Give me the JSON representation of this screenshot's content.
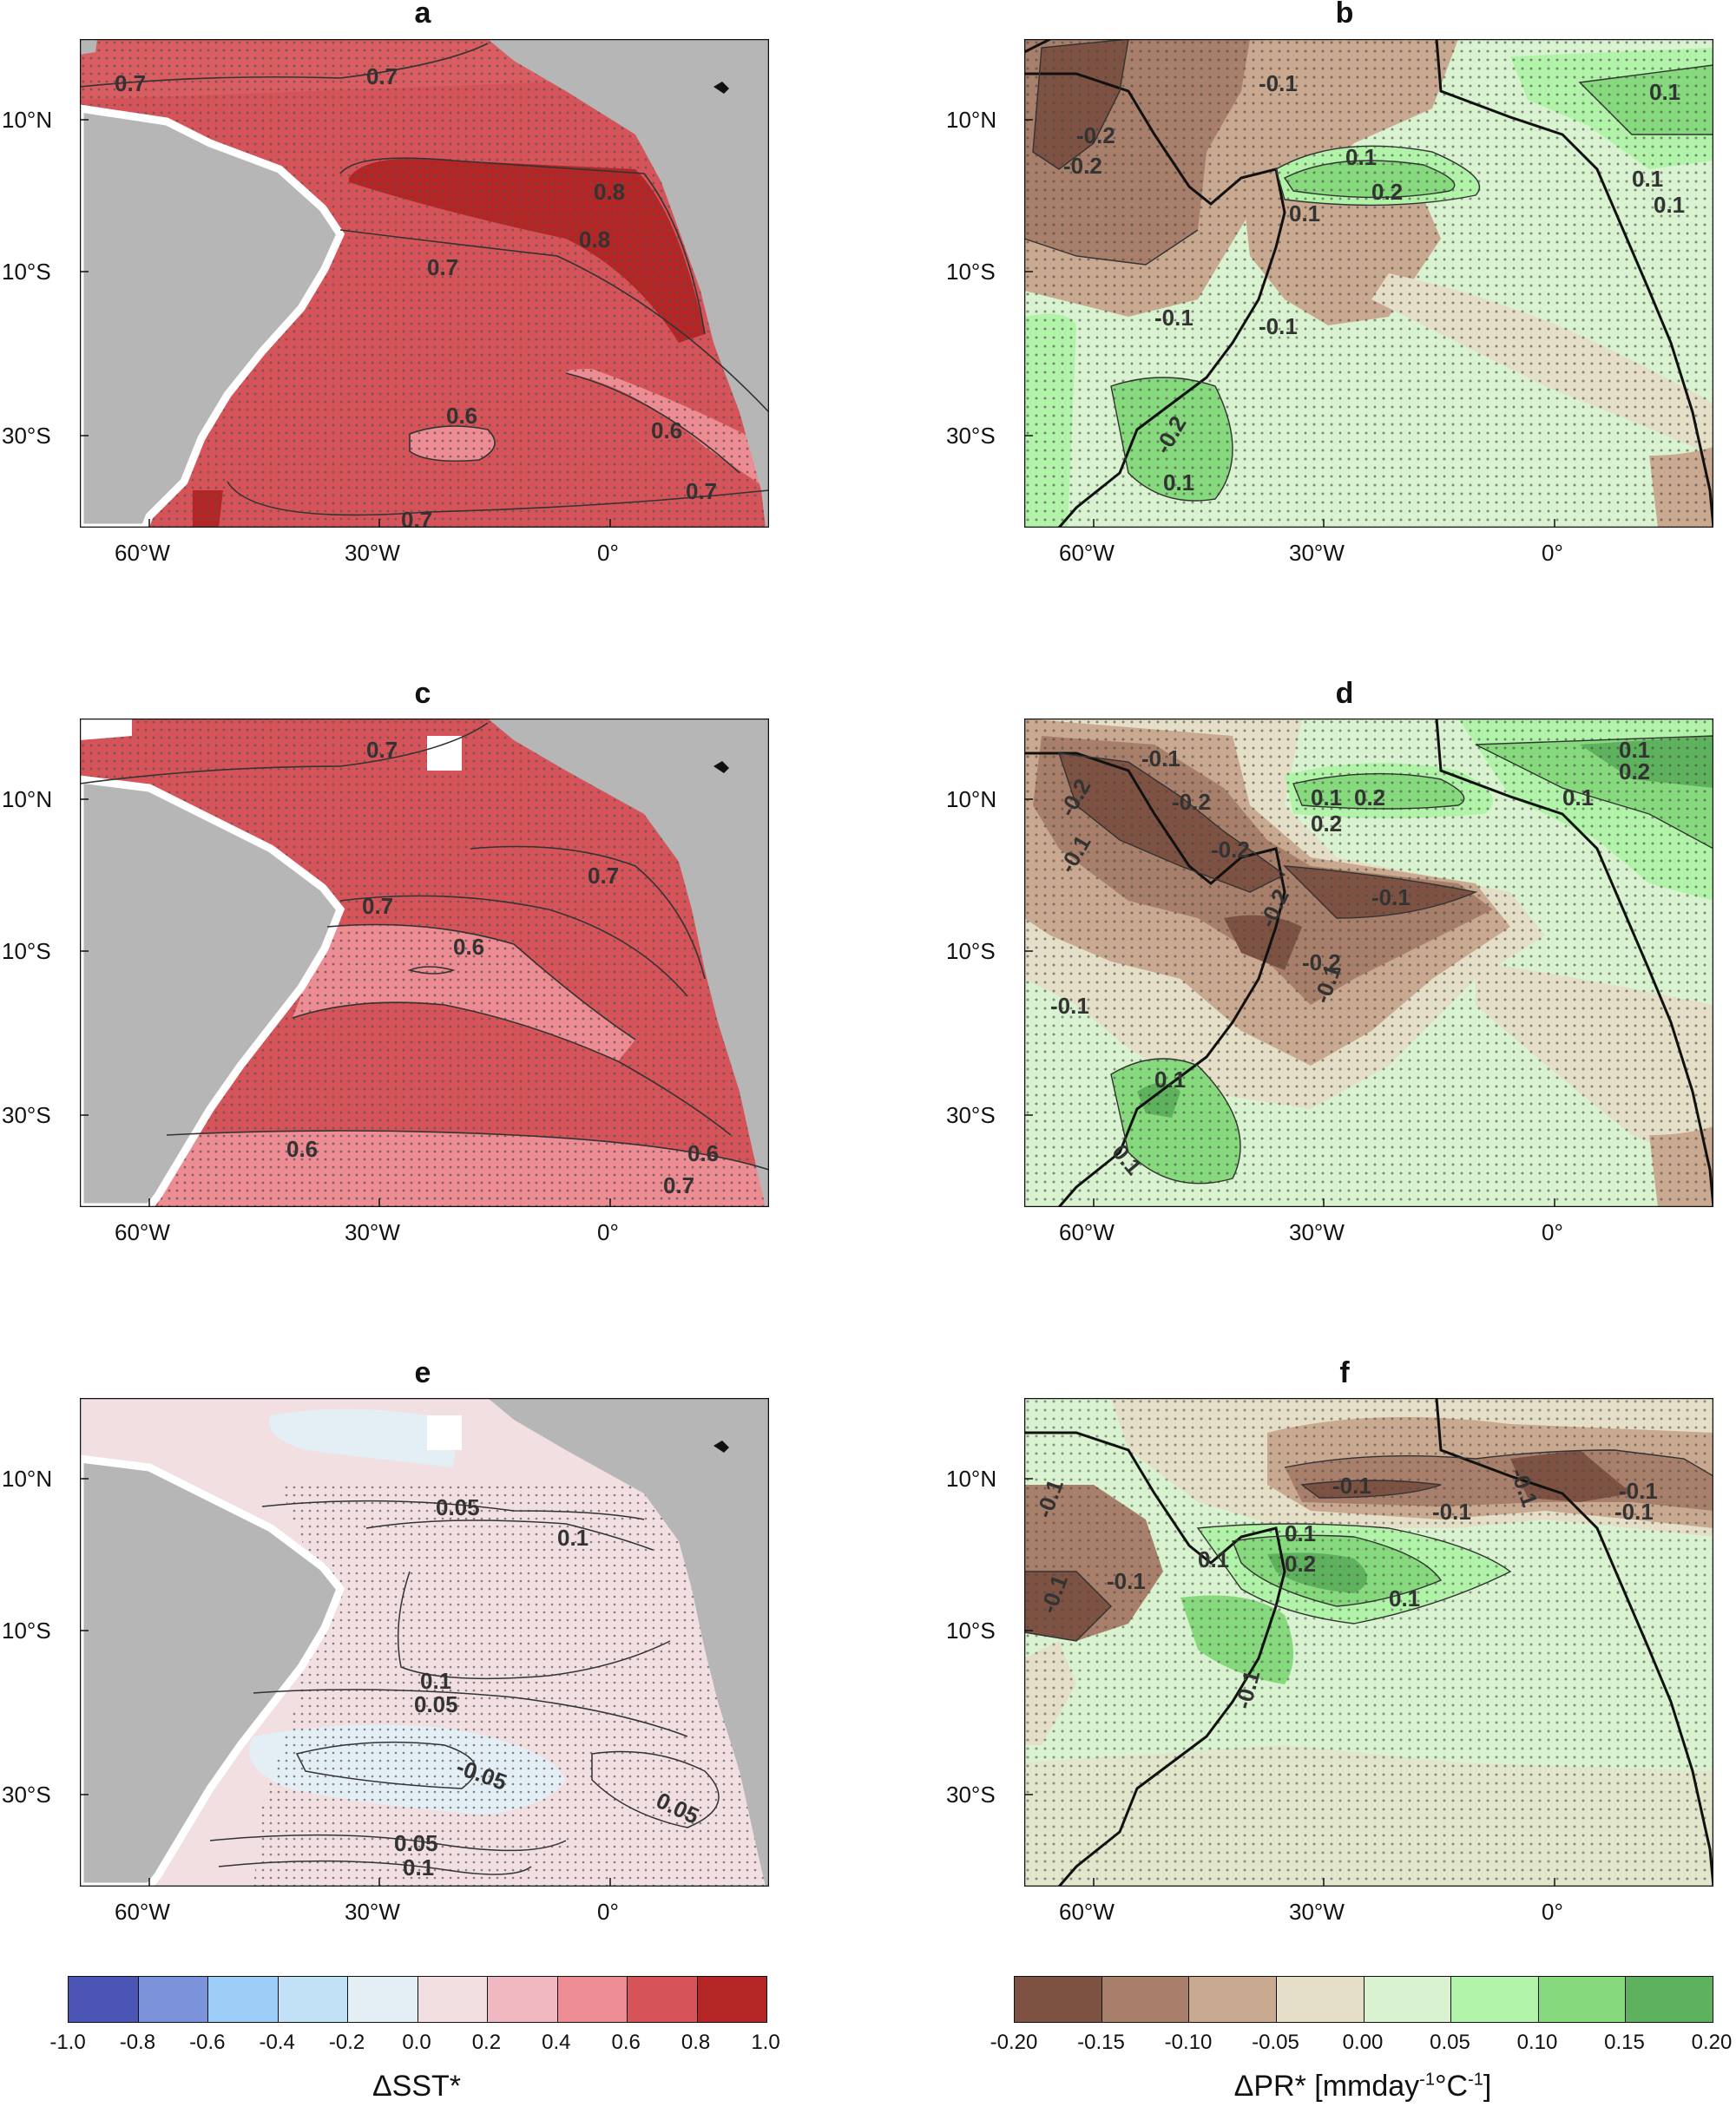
{
  "panels": [
    {
      "id": "a",
      "title": "a",
      "field": "sst",
      "labels": [
        "0.7",
        "0.7",
        "0.8",
        "0.8",
        "0.7",
        "0.6",
        "0.6",
        "0.7",
        "0.7"
      ]
    },
    {
      "id": "b",
      "title": "b",
      "field": "pr",
      "labels": [
        "-0.1",
        "0.1",
        "-0.2",
        "-0.2",
        "0.1",
        "0.2",
        "0.1",
        "-0.1",
        "-0.1",
        "0.1",
        "-0.2",
        "0.1",
        "0.1"
      ]
    },
    {
      "id": "c",
      "title": "c",
      "field": "sst",
      "labels": [
        "0.7",
        "0.7",
        "0.7",
        "0.6",
        "0.6",
        "0.6",
        "0.7"
      ]
    },
    {
      "id": "d",
      "title": "d",
      "field": "pr",
      "labels": [
        "-0.1",
        "-0.2",
        "-0.2",
        "-0.2",
        "-0.1",
        "0.1",
        "0.2",
        "0.2",
        "0.1",
        "0.2",
        "0.1",
        "-0.1",
        "-0.2",
        "-0.2",
        "-0.1",
        "-0.1",
        "0.1",
        "0.1"
      ]
    },
    {
      "id": "e",
      "title": "e",
      "field": "sst",
      "labels": [
        "0.05",
        "0.1",
        "0.1",
        "0.05",
        "-0.05",
        "0.05",
        "0.05",
        "0.1"
      ]
    },
    {
      "id": "f",
      "title": "f",
      "field": "pr",
      "labels": [
        "-0.1",
        "-0.1",
        "-0.1",
        "-0.1",
        "-0.1",
        "0.1",
        "0.2",
        "0.1",
        "0.1",
        "-0.1",
        "-0.1",
        "-0.1",
        "-0.1"
      ]
    }
  ],
  "axes": {
    "lon_ticks": [
      "60°W",
      "30°W",
      "0°"
    ],
    "lat_ticks": [
      "10°N",
      "10°S",
      "30°S"
    ]
  },
  "colorbars": {
    "sst": {
      "title": "ΔSST*",
      "labels": [
        "-1.0",
        "-0.8",
        "-0.6",
        "-0.4",
        "-0.2",
        "0.0",
        "0.2",
        "0.4",
        "0.6",
        "0.8",
        "1.0"
      ],
      "colors": [
        "#4a55b5",
        "#7b93da",
        "#9bcdf7",
        "#c2e1f7",
        "#e3eef5",
        "#f1dfe1",
        "#f0b8c0",
        "#ee8c93",
        "#d65459",
        "#b42525"
      ]
    },
    "pr": {
      "title_main": "ΔPR* [mmday",
      "title_sup1": "-1",
      "title_mid": "°C",
      "title_sup2": "-1",
      "title_end": "]",
      "labels": [
        "-0.20",
        "-0.15",
        "-0.10",
        "-0.05",
        "0.00",
        "0.05",
        "0.10",
        "0.15",
        "0.20"
      ],
      "colors": [
        "#7d5242",
        "#a87f6a",
        "#caa991",
        "#e5dfc8",
        "#d9f3d0",
        "#b1f4a9",
        "#86d97d",
        "#5fb25d"
      ]
    }
  },
  "colors": {
    "land": "#b6b6b6",
    "sst_high": "#b42525",
    "sst_mid": "#d65459",
    "sst_low": "#ee8c93",
    "sst_pale": "#f1dfe1",
    "sst_cool": "#e3eef5"
  }
}
